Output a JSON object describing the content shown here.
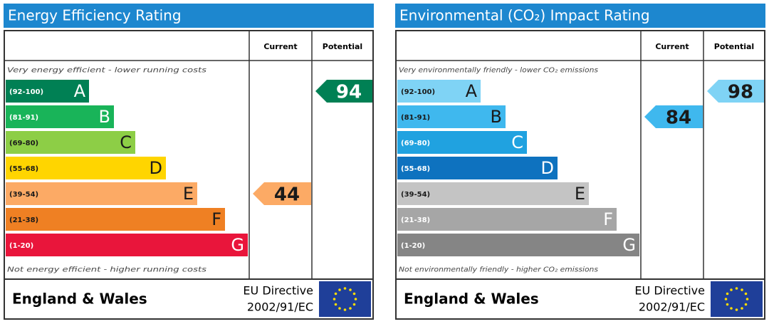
{
  "panels": [
    {
      "title": "Energy Efficiency Rating",
      "header": {
        "current": "Current",
        "potential": "Potential"
      },
      "top_note": "Very energy efficient - lower running costs",
      "bottom_note": "Not energy efficient - higher running costs",
      "bands": [
        {
          "range": "(92-100)",
          "letter": "A",
          "color": "#008054",
          "text_color": "#ffffff"
        },
        {
          "range": "(81-91)",
          "letter": "B",
          "color": "#19b459",
          "text_color": "#ffffff"
        },
        {
          "range": "(69-80)",
          "letter": "C",
          "color": "#8dce46",
          "text_color": "#1a1a1a"
        },
        {
          "range": "(55-68)",
          "letter": "D",
          "color": "#ffd500",
          "text_color": "#1a1a1a"
        },
        {
          "range": "(39-54)",
          "letter": "E",
          "color": "#fcaa65",
          "text_color": "#1a1a1a"
        },
        {
          "range": "(21-38)",
          "letter": "F",
          "color": "#ef8023",
          "text_color": "#1a1a1a"
        },
        {
          "range": "(1-20)",
          "letter": "G",
          "color": "#e9153b",
          "text_color": "#ffffff"
        }
      ],
      "current": 44,
      "potential": 94,
      "footer": {
        "region": "England & Wales",
        "directive": "EU Directive",
        "code": "2002/91/EC"
      }
    },
    {
      "title": "Environmental (CO₂) Impact Rating",
      "header": {
        "current": "Current",
        "potential": "Potential"
      },
      "top_note": "Very environmentally friendly - lower CO₂ emissions",
      "bottom_note": "Not environmentally friendly - higher CO₂ emissions",
      "bands": [
        {
          "range": "(92-100)",
          "letter": "A",
          "color": "#7fd3f5",
          "text_color": "#1a1a1a"
        },
        {
          "range": "(81-91)",
          "letter": "B",
          "color": "#3fb8ee",
          "text_color": "#1a1a1a"
        },
        {
          "range": "(69-80)",
          "letter": "C",
          "color": "#20a2e0",
          "text_color": "#ffffff"
        },
        {
          "range": "(55-68)",
          "letter": "D",
          "color": "#0e72bf",
          "text_color": "#ffffff"
        },
        {
          "range": "(39-54)",
          "letter": "E",
          "color": "#c4c4c4",
          "text_color": "#1a1a1a"
        },
        {
          "range": "(21-38)",
          "letter": "F",
          "color": "#a6a6a6",
          "text_color": "#ffffff"
        },
        {
          "range": "(1-20)",
          "letter": "G",
          "color": "#858585",
          "text_color": "#ffffff"
        }
      ],
      "current": 84,
      "potential": 98,
      "footer": {
        "region": "England & Wales",
        "directive": "EU Directive",
        "code": "2002/91/EC"
      }
    }
  ]
}
